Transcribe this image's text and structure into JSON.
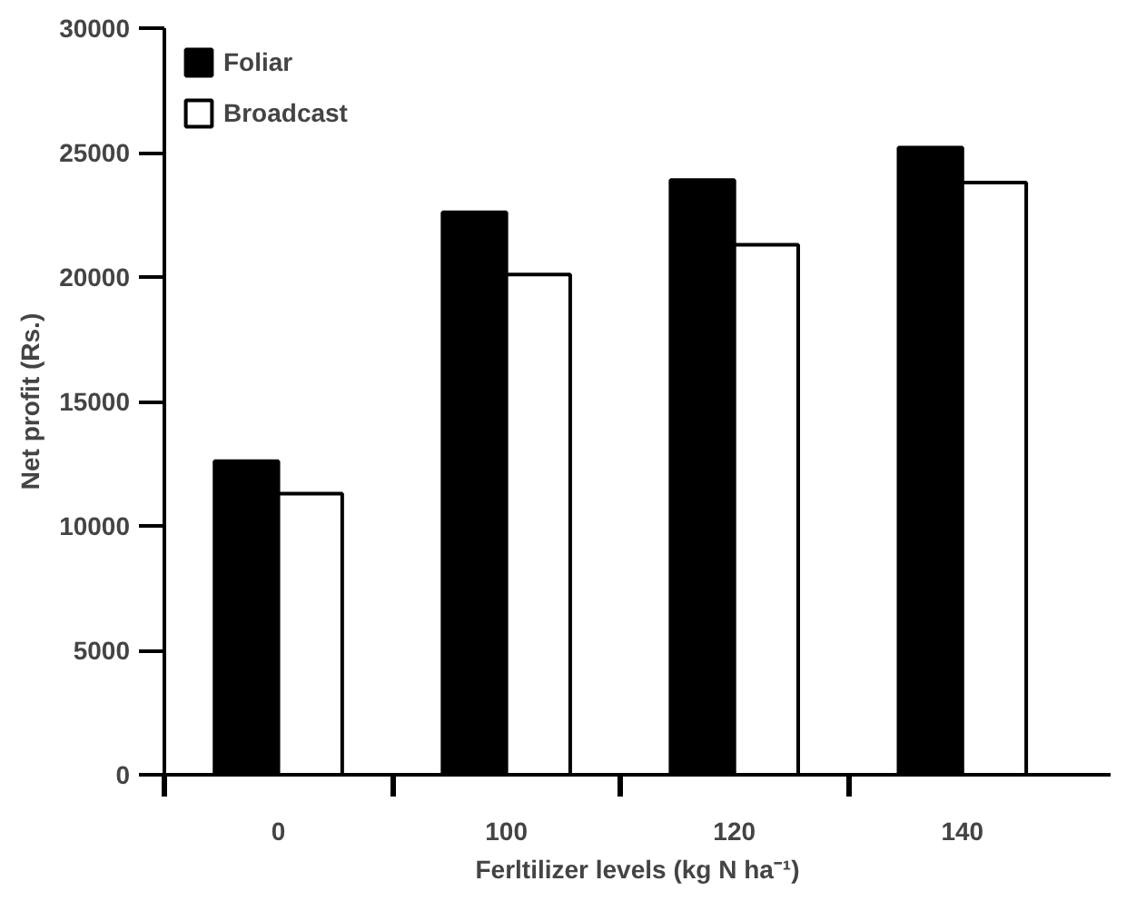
{
  "chart_data": {
    "type": "bar",
    "xlabel": "Ferltilizer levels (kg N ha⁻¹)",
    "ylabel": "Net profit (Rs.)",
    "categories": [
      "0",
      "100",
      "120",
      "140"
    ],
    "series": [
      {
        "name": "Foliar",
        "color": "#000000",
        "values": [
          12600,
          22600,
          23900,
          25200
        ]
      },
      {
        "name": "Broadcast",
        "color": "#ffffff",
        "values": [
          11300,
          20100,
          21300,
          23800
        ]
      }
    ],
    "ylim": [
      0,
      30000
    ],
    "yticks": [
      0,
      5000,
      10000,
      15000,
      20000,
      25000,
      30000
    ],
    "grid": false,
    "legend": "top left"
  }
}
